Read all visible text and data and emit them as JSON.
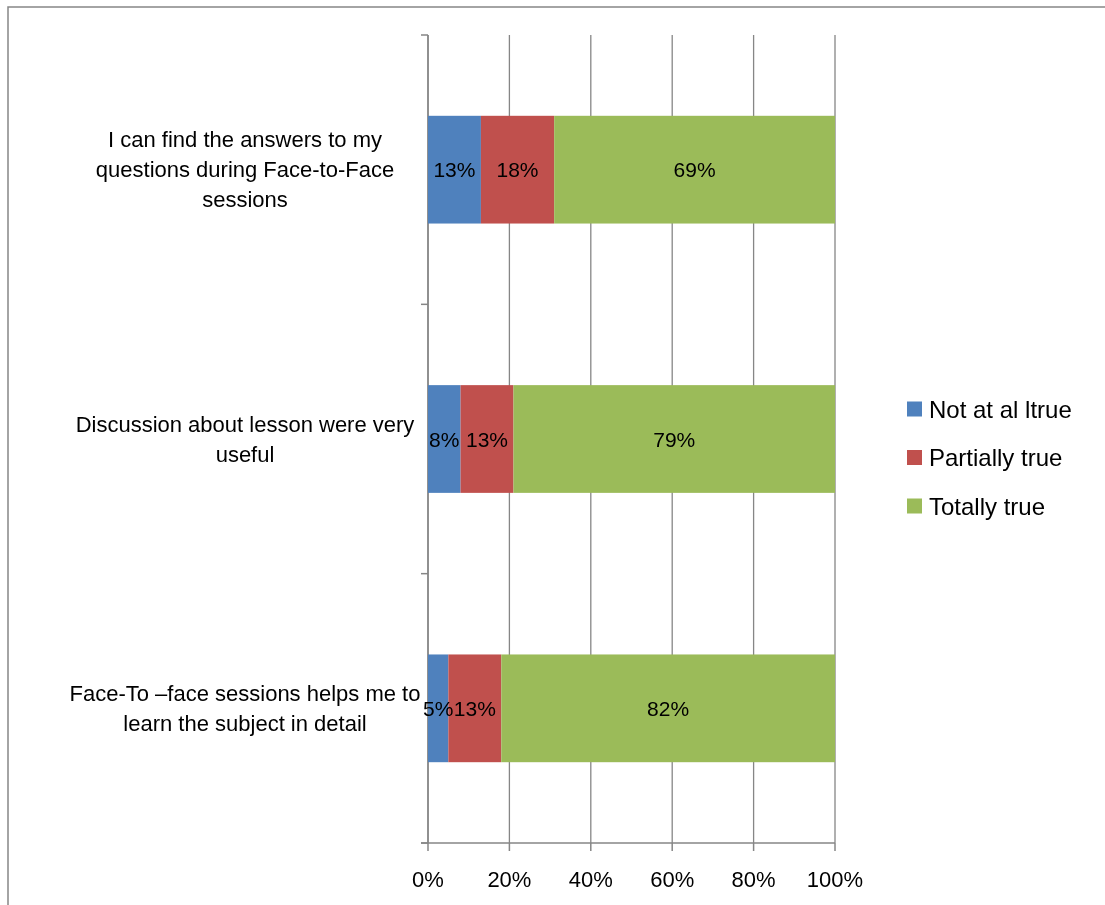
{
  "chart_data": {
    "type": "bar",
    "orientation": "horizontal",
    "stacked": true,
    "categories": [
      "I can find the answers to my questions during Face-to-Face sessions",
      "Discussion about lesson were very useful",
      "Face-To –face sessions helps me to learn the subject in detail"
    ],
    "series": [
      {
        "name": "Not at al ltrue",
        "color": "#4f81bd",
        "values": [
          13,
          8,
          5
        ],
        "value_labels": [
          "13%",
          "8%",
          "5%"
        ]
      },
      {
        "name": "Partially true",
        "color": "#c0504d",
        "values": [
          18,
          13,
          13
        ],
        "value_labels": [
          "18%",
          "13%",
          "13%"
        ]
      },
      {
        "name": "Totally true",
        "color": "#9bbb59",
        "values": [
          69,
          79,
          82
        ],
        "value_labels": [
          "69%",
          "79%",
          "82%"
        ]
      }
    ],
    "xlim": [
      0,
      100
    ],
    "xticks": [
      {
        "value": 0,
        "label": "0%"
      },
      {
        "value": 20,
        "label": "20%"
      },
      {
        "value": 40,
        "label": "40%"
      },
      {
        "value": 60,
        "label": "60%"
      },
      {
        "value": 80,
        "label": "80%"
      },
      {
        "value": 100,
        "label": "100%"
      }
    ],
    "grid": "x",
    "legend": "right"
  }
}
